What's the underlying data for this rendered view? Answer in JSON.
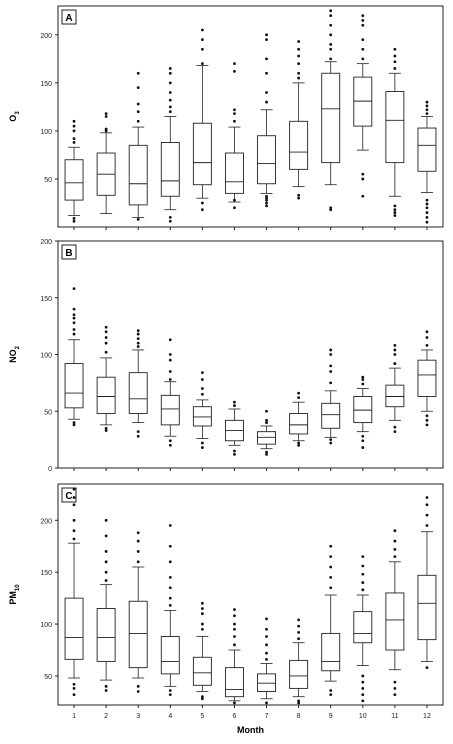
{
  "chart_data": [
    {
      "type": "boxplot",
      "panel_label": "A",
      "ylabel": "O",
      "ylabel_sub": "3",
      "ylim": [
        0,
        230
      ],
      "yticks": [
        50,
        100,
        150,
        200
      ],
      "categories": [
        "1",
        "2",
        "3",
        "4",
        "5",
        "6",
        "7",
        "8",
        "9",
        "10",
        "11",
        "12"
      ],
      "boxes": [
        {
          "min": 12,
          "q1": 28,
          "median": 46,
          "q3": 70,
          "max": 83,
          "outliers": [
            6,
            9,
            88,
            92,
            100,
            105,
            110
          ]
        },
        {
          "min": 14,
          "q1": 33,
          "median": 55,
          "q3": 77,
          "max": 98,
          "outliers": [
            100,
            102,
            115,
            118
          ]
        },
        {
          "min": 10,
          "q1": 23,
          "median": 45,
          "q3": 85,
          "max": 104,
          "outliers": [
            8,
            110,
            120,
            128,
            145,
            160
          ]
        },
        {
          "min": 18,
          "q1": 32,
          "median": 48,
          "q3": 88,
          "max": 115,
          "outliers": [
            6,
            10,
            120,
            125,
            132,
            140,
            150,
            160,
            165
          ]
        },
        {
          "min": 30,
          "q1": 44,
          "median": 67,
          "q3": 108,
          "max": 168,
          "outliers": [
            18,
            25,
            170,
            185,
            195,
            205
          ]
        },
        {
          "min": 26,
          "q1": 35,
          "median": 47,
          "q3": 77,
          "max": 104,
          "outliers": [
            20,
            28,
            110,
            118,
            122,
            162,
            170
          ]
        },
        {
          "min": 35,
          "q1": 45,
          "median": 66,
          "q3": 95,
          "max": 122,
          "outliers": [
            22,
            25,
            28,
            30,
            32,
            130,
            140,
            160,
            175,
            195,
            200
          ]
        },
        {
          "min": 42,
          "q1": 60,
          "median": 78,
          "q3": 110,
          "max": 150,
          "outliers": [
            30,
            33,
            155,
            160,
            170,
            178,
            185,
            193
          ]
        },
        {
          "min": 44,
          "q1": 67,
          "median": 123,
          "q3": 160,
          "max": 172,
          "outliers": [
            18,
            20,
            175,
            185,
            190,
            200,
            210,
            220,
            225
          ]
        },
        {
          "min": 80,
          "q1": 105,
          "median": 131,
          "q3": 156,
          "max": 170,
          "outliers": [
            32,
            50,
            55,
            175,
            185,
            195,
            210,
            215,
            220
          ]
        },
        {
          "min": 32,
          "q1": 67,
          "median": 111,
          "q3": 141,
          "max": 160,
          "outliers": [
            12,
            15,
            18,
            22,
            165,
            172,
            178,
            185
          ]
        },
        {
          "min": 36,
          "q1": 58,
          "median": 85,
          "q3": 103,
          "max": 115,
          "outliers": [
            5,
            10,
            15,
            20,
            24,
            28,
            118,
            122,
            126,
            130
          ]
        }
      ]
    },
    {
      "type": "boxplot",
      "panel_label": "B",
      "ylabel": "NO",
      "ylabel_sub": "2",
      "ylim": [
        0,
        200
      ],
      "yticks": [
        0,
        50,
        100,
        150,
        200
      ],
      "categories": [
        "1",
        "2",
        "3",
        "4",
        "5",
        "6",
        "7",
        "8",
        "9",
        "10",
        "11",
        "12"
      ],
      "boxes": [
        {
          "min": 43,
          "q1": 53,
          "median": 66,
          "q3": 92,
          "max": 113,
          "outliers": [
            38,
            40,
            118,
            122,
            128,
            132,
            135,
            140,
            158
          ]
        },
        {
          "min": 38,
          "q1": 48,
          "median": 63,
          "q3": 80,
          "max": 97,
          "outliers": [
            33,
            35,
            102,
            110,
            115,
            120,
            124
          ]
        },
        {
          "min": 40,
          "q1": 48,
          "median": 61,
          "q3": 84,
          "max": 104,
          "outliers": [
            28,
            32,
            107,
            110,
            114,
            118,
            121
          ]
        },
        {
          "min": 28,
          "q1": 38,
          "median": 52,
          "q3": 64,
          "max": 76,
          "outliers": [
            20,
            24,
            78,
            85,
            95,
            100,
            113
          ]
        },
        {
          "min": 26,
          "q1": 37,
          "median": 45,
          "q3": 54,
          "max": 60,
          "outliers": [
            18,
            22,
            65,
            70,
            78,
            84
          ]
        },
        {
          "min": 20,
          "q1": 24,
          "median": 33,
          "q3": 42,
          "max": 52,
          "outliers": [
            12,
            15,
            55,
            58
          ]
        },
        {
          "min": 17,
          "q1": 21,
          "median": 27,
          "q3": 32,
          "max": 37,
          "outliers": [
            12,
            14,
            40,
            42,
            50
          ]
        },
        {
          "min": 24,
          "q1": 30,
          "median": 38,
          "q3": 48,
          "max": 58,
          "outliers": [
            20,
            22,
            62,
            66
          ]
        },
        {
          "min": 27,
          "q1": 35,
          "median": 47,
          "q3": 57,
          "max": 68,
          "outliers": [
            22,
            25,
            75,
            85,
            90,
            100,
            104
          ]
        },
        {
          "min": 32,
          "q1": 40,
          "median": 51,
          "q3": 63,
          "max": 70,
          "outliers": [
            18,
            24,
            28,
            74,
            78,
            80
          ]
        },
        {
          "min": 42,
          "q1": 54,
          "median": 63,
          "q3": 73,
          "max": 88,
          "outliers": [
            32,
            36,
            92,
            100,
            104,
            108
          ]
        },
        {
          "min": 50,
          "q1": 63,
          "median": 82,
          "q3": 95,
          "max": 104,
          "outliers": [
            38,
            42,
            46,
            108,
            115,
            120
          ]
        }
      ]
    },
    {
      "type": "boxplot",
      "panel_label": "C",
      "ylabel": "PM",
      "ylabel_sub": "10",
      "ylim": [
        22,
        235
      ],
      "yticks": [
        50,
        100,
        150,
        200
      ],
      "xlabel": "Month",
      "categories": [
        "1",
        "2",
        "3",
        "4",
        "5",
        "6",
        "7",
        "8",
        "9",
        "10",
        "11",
        "12"
      ],
      "boxes": [
        {
          "min": 48,
          "q1": 66,
          "median": 87,
          "q3": 125,
          "max": 178,
          "outliers": [
            32,
            38,
            42,
            182,
            190,
            200,
            215,
            222,
            230
          ]
        },
        {
          "min": 46,
          "q1": 64,
          "median": 87,
          "q3": 115,
          "max": 138,
          "outliers": [
            36,
            40,
            142,
            150,
            160,
            170,
            185,
            200
          ]
        },
        {
          "min": 48,
          "q1": 58,
          "median": 91,
          "q3": 122,
          "max": 155,
          "outliers": [
            35,
            40,
            160,
            170,
            180,
            188
          ]
        },
        {
          "min": 40,
          "q1": 52,
          "median": 64,
          "q3": 88,
          "max": 113,
          "outliers": [
            32,
            36,
            118,
            125,
            135,
            145,
            160,
            175,
            195
          ]
        },
        {
          "min": 35,
          "q1": 41,
          "median": 53,
          "q3": 68,
          "max": 88,
          "outliers": [
            28,
            30,
            95,
            100,
            110,
            115,
            120
          ]
        },
        {
          "min": 26,
          "q1": 30,
          "median": 37,
          "q3": 58,
          "max": 75,
          "outliers": [
            24,
            80,
            88,
            95,
            100,
            108,
            114
          ]
        },
        {
          "min": 28,
          "q1": 35,
          "median": 43,
          "q3": 52,
          "max": 62,
          "outliers": [
            24,
            66,
            72,
            80,
            88,
            95,
            105
          ]
        },
        {
          "min": 30,
          "q1": 38,
          "median": 50,
          "q3": 65,
          "max": 82,
          "outliers": [
            24,
            26,
            86,
            92,
            98,
            104
          ]
        },
        {
          "min": 45,
          "q1": 55,
          "median": 64,
          "q3": 91,
          "max": 128,
          "outliers": [
            32,
            36,
            135,
            145,
            155,
            165,
            175
          ]
        },
        {
          "min": 60,
          "q1": 82,
          "median": 91,
          "q3": 112,
          "max": 128,
          "outliers": [
            26,
            32,
            38,
            44,
            50,
            133,
            140,
            148,
            156,
            165
          ]
        },
        {
          "min": 56,
          "q1": 75,
          "median": 104,
          "q3": 130,
          "max": 160,
          "outliers": [
            32,
            38,
            44,
            165,
            172,
            180,
            190
          ]
        },
        {
          "min": 64,
          "q1": 85,
          "median": 120,
          "q3": 147,
          "max": 189,
          "outliers": [
            58,
            195,
            205,
            215,
            222
          ]
        }
      ]
    }
  ]
}
